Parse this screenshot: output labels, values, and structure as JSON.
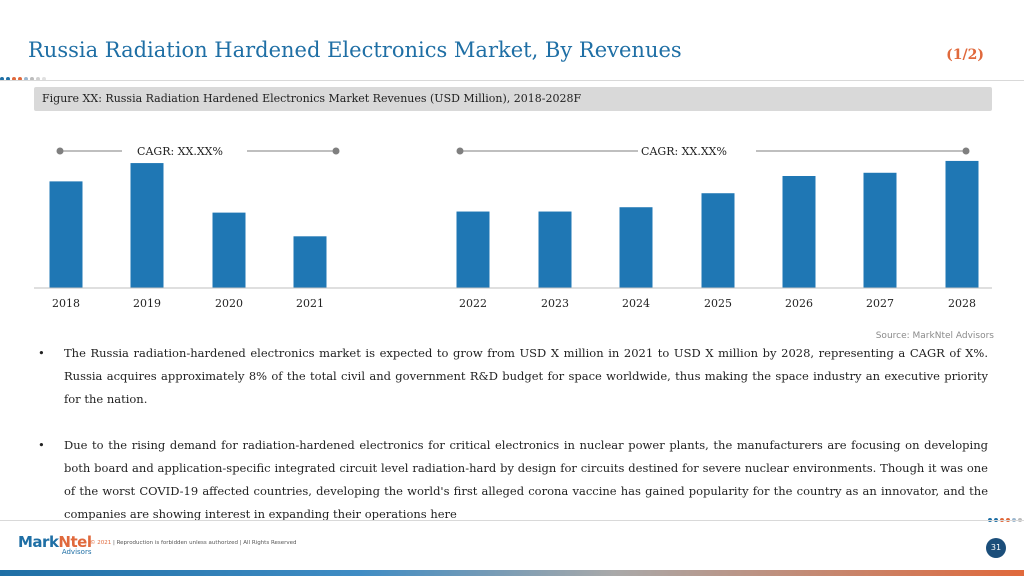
{
  "header": {
    "title": "Russia Radiation Hardened Electronics Market, By Revenues",
    "page_fraction": "(1/2)"
  },
  "figure": {
    "caption": "Figure XX: Russia Radiation Hardened Electronics Market Revenues (USD Million), 2018-2028F"
  },
  "chart_data": {
    "type": "bar",
    "categories": [
      "2018",
      "2019",
      "2020",
      "2021",
      "2022",
      "2023",
      "2024",
      "2025",
      "2026",
      "2027",
      "2028"
    ],
    "values": [
      99,
      116,
      70,
      48,
      71,
      71,
      75,
      88,
      104,
      107,
      118
    ],
    "ylim": [
      0,
      130
    ],
    "grid": false,
    "legend": "none",
    "bar_color": "#1f77b4",
    "cagr_labels": [
      "CAGR: XX.XX%",
      "CAGR: XX.XX%"
    ]
  },
  "source": "Source: MarkNtel Advisors",
  "bullets": [
    "The Russia radiation-hardened electronics market is expected to grow from USD X million in 2021 to USD X million by 2028, representing a CAGR of X%. Russia acquires approximately 8% of the total civil and government R&D budget for space worldwide, thus making the space industry an executive priority for the nation.",
    "Due to the rising demand for radiation-hardened electronics for critical electronics in nuclear power plants, the manufacturers are focusing on developing both board and application-specific integrated circuit level radiation-hard by design for circuits destined for severe nuclear environments. Though it was one of the worst COVID-19 affected countries, developing the world's first alleged corona vaccine has gained popularity for the country as an innovator, and the companies are showing interest in expanding their operations here"
  ],
  "footer": {
    "logo_mark": "Mark",
    "logo_ntel": "Ntel",
    "logo_sub": "Advisors",
    "copyright_year": "© 2021",
    "copyright_text": " | Reproduction is forbidden unless authorized | All Rights Reserved",
    "page_number": "31"
  },
  "colors": {
    "accent_blue": "#1f6fa5",
    "accent_orange": "#e0693c",
    "bar": "#1f77b4"
  }
}
